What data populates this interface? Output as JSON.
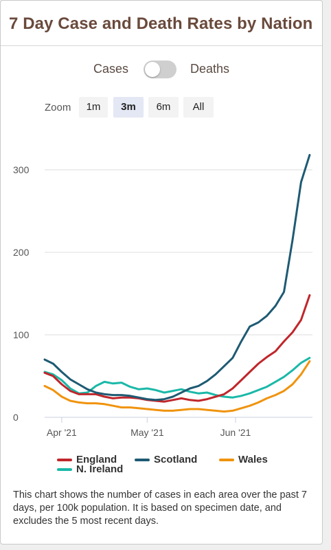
{
  "title": "7 Day Case and Death Rates by Nation",
  "toggle": {
    "left_label": "Cases",
    "right_label": "Deaths",
    "state": "Cases"
  },
  "zoom": {
    "label": "Zoom",
    "options": [
      "1m",
      "3m",
      "6m",
      "All"
    ],
    "selected": "3m"
  },
  "colors": {
    "england": "#c0262b",
    "scotland": "#1e5a73",
    "wales": "#f0930d",
    "n_ireland": "#1ab8a8"
  },
  "chart_data": {
    "type": "line",
    "x_axis": {
      "type": "date",
      "tick_labels": [
        "Apr '21",
        "May '21",
        "Jun '21"
      ],
      "ticks": [
        "2021-04-01",
        "2021-05-01",
        "2021-06-01"
      ],
      "range": [
        "2021-03-26",
        "2021-06-28"
      ]
    },
    "y_axis": {
      "ticks": [
        0,
        100,
        200,
        300
      ],
      "range": [
        0,
        330
      ],
      "grid": true
    },
    "legend": {
      "position": "bottom",
      "entries": [
        "England",
        "Scotland",
        "Wales",
        "N. Ireland"
      ]
    },
    "series": [
      {
        "name": "England",
        "color": "#c0262b",
        "points": [
          [
            "2021-03-26",
            54
          ],
          [
            "2021-03-29",
            50
          ],
          [
            "2021-04-01",
            40
          ],
          [
            "2021-04-04",
            32
          ],
          [
            "2021-04-07",
            28
          ],
          [
            "2021-04-10",
            28
          ],
          [
            "2021-04-13",
            28
          ],
          [
            "2021-04-16",
            25
          ],
          [
            "2021-04-19",
            23
          ],
          [
            "2021-04-22",
            24
          ],
          [
            "2021-04-25",
            24
          ],
          [
            "2021-04-28",
            23
          ],
          [
            "2021-05-01",
            21
          ],
          [
            "2021-05-04",
            20
          ],
          [
            "2021-05-07",
            19
          ],
          [
            "2021-05-10",
            21
          ],
          [
            "2021-05-13",
            23
          ],
          [
            "2021-05-16",
            21
          ],
          [
            "2021-05-19",
            20
          ],
          [
            "2021-05-22",
            22
          ],
          [
            "2021-05-25",
            25
          ],
          [
            "2021-05-28",
            28
          ],
          [
            "2021-05-31",
            35
          ],
          [
            "2021-06-03",
            45
          ],
          [
            "2021-06-06",
            55
          ],
          [
            "2021-06-09",
            65
          ],
          [
            "2021-06-12",
            73
          ],
          [
            "2021-06-15",
            80
          ],
          [
            "2021-06-18",
            92
          ],
          [
            "2021-06-21",
            103
          ],
          [
            "2021-06-24",
            118
          ],
          [
            "2021-06-27",
            148
          ]
        ]
      },
      {
        "name": "Scotland",
        "color": "#1e5a73",
        "points": [
          [
            "2021-03-26",
            70
          ],
          [
            "2021-03-29",
            65
          ],
          [
            "2021-04-01",
            55
          ],
          [
            "2021-04-04",
            46
          ],
          [
            "2021-04-07",
            40
          ],
          [
            "2021-04-10",
            34
          ],
          [
            "2021-04-13",
            30
          ],
          [
            "2021-04-16",
            28
          ],
          [
            "2021-04-19",
            27
          ],
          [
            "2021-04-22",
            27
          ],
          [
            "2021-04-25",
            26
          ],
          [
            "2021-04-28",
            24
          ],
          [
            "2021-05-01",
            22
          ],
          [
            "2021-05-04",
            21
          ],
          [
            "2021-05-07",
            22
          ],
          [
            "2021-05-10",
            25
          ],
          [
            "2021-05-13",
            30
          ],
          [
            "2021-05-16",
            35
          ],
          [
            "2021-05-19",
            38
          ],
          [
            "2021-05-22",
            44
          ],
          [
            "2021-05-25",
            52
          ],
          [
            "2021-05-28",
            62
          ],
          [
            "2021-05-31",
            72
          ],
          [
            "2021-06-03",
            92
          ],
          [
            "2021-06-06",
            110
          ],
          [
            "2021-06-09",
            115
          ],
          [
            "2021-06-12",
            123
          ],
          [
            "2021-06-15",
            135
          ],
          [
            "2021-06-18",
            152
          ],
          [
            "2021-06-21",
            215
          ],
          [
            "2021-06-24",
            285
          ],
          [
            "2021-06-27",
            318
          ]
        ]
      },
      {
        "name": "Wales",
        "color": "#f0930d",
        "points": [
          [
            "2021-03-26",
            38
          ],
          [
            "2021-03-29",
            33
          ],
          [
            "2021-04-01",
            25
          ],
          [
            "2021-04-04",
            20
          ],
          [
            "2021-04-07",
            18
          ],
          [
            "2021-04-10",
            17
          ],
          [
            "2021-04-13",
            17
          ],
          [
            "2021-04-16",
            16
          ],
          [
            "2021-04-19",
            14
          ],
          [
            "2021-04-22",
            12
          ],
          [
            "2021-04-25",
            12
          ],
          [
            "2021-04-28",
            11
          ],
          [
            "2021-05-01",
            10
          ],
          [
            "2021-05-04",
            9
          ],
          [
            "2021-05-07",
            8
          ],
          [
            "2021-05-10",
            8
          ],
          [
            "2021-05-13",
            9
          ],
          [
            "2021-05-16",
            10
          ],
          [
            "2021-05-19",
            10
          ],
          [
            "2021-05-22",
            9
          ],
          [
            "2021-05-25",
            8
          ],
          [
            "2021-05-28",
            7
          ],
          [
            "2021-05-31",
            8
          ],
          [
            "2021-06-03",
            11
          ],
          [
            "2021-06-06",
            14
          ],
          [
            "2021-06-09",
            18
          ],
          [
            "2021-06-12",
            23
          ],
          [
            "2021-06-15",
            27
          ],
          [
            "2021-06-18",
            32
          ],
          [
            "2021-06-21",
            40
          ],
          [
            "2021-06-24",
            52
          ],
          [
            "2021-06-27",
            68
          ]
        ]
      },
      {
        "name": "N. Ireland",
        "color": "#1ab8a8",
        "points": [
          [
            "2021-03-26",
            55
          ],
          [
            "2021-03-29",
            52
          ],
          [
            "2021-04-01",
            45
          ],
          [
            "2021-04-04",
            35
          ],
          [
            "2021-04-07",
            29
          ],
          [
            "2021-04-10",
            30
          ],
          [
            "2021-04-13",
            38
          ],
          [
            "2021-04-16",
            43
          ],
          [
            "2021-04-19",
            41
          ],
          [
            "2021-04-22",
            42
          ],
          [
            "2021-04-25",
            37
          ],
          [
            "2021-04-28",
            34
          ],
          [
            "2021-05-01",
            35
          ],
          [
            "2021-05-04",
            33
          ],
          [
            "2021-05-07",
            30
          ],
          [
            "2021-05-10",
            32
          ],
          [
            "2021-05-13",
            34
          ],
          [
            "2021-05-16",
            31
          ],
          [
            "2021-05-19",
            29
          ],
          [
            "2021-05-22",
            30
          ],
          [
            "2021-05-25",
            27
          ],
          [
            "2021-05-28",
            25
          ],
          [
            "2021-05-31",
            24
          ],
          [
            "2021-06-03",
            26
          ],
          [
            "2021-06-06",
            29
          ],
          [
            "2021-06-09",
            33
          ],
          [
            "2021-06-12",
            37
          ],
          [
            "2021-06-15",
            43
          ],
          [
            "2021-06-18",
            49
          ],
          [
            "2021-06-21",
            57
          ],
          [
            "2021-06-24",
            66
          ],
          [
            "2021-06-27",
            72
          ]
        ]
      }
    ]
  },
  "description": "This chart shows the number of cases in each area over the past 7 days, per 100k population. It is based on specimen date, and excludes the 5 most recent days."
}
